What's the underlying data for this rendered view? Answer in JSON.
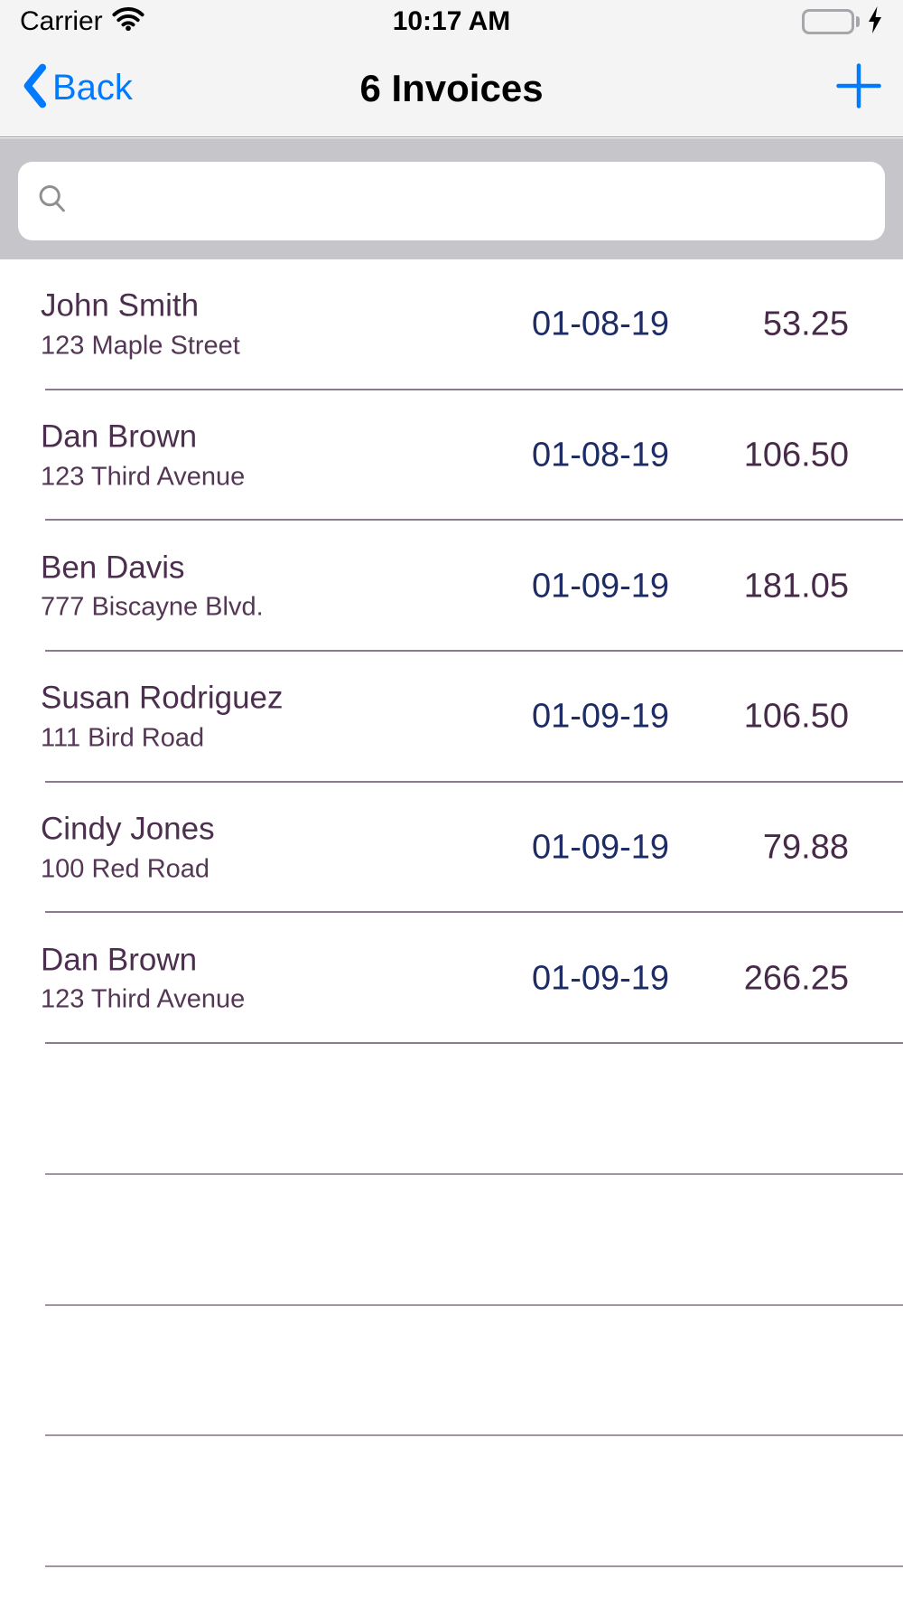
{
  "status_bar": {
    "carrier": "Carrier",
    "time": "10:17 AM"
  },
  "nav_bar": {
    "back_label": "Back",
    "title": "6 Invoices",
    "add_label": "+"
  },
  "search": {
    "value": "",
    "placeholder": ""
  },
  "invoice_list": {
    "rows": [
      {
        "name": "John Smith",
        "address": "123 Maple Street",
        "date": "01-08-19",
        "amount": "53.25"
      },
      {
        "name": "Dan Brown",
        "address": "123 Third Avenue",
        "date": "01-08-19",
        "amount": "106.50"
      },
      {
        "name": "Ben Davis",
        "address": "777 Biscayne Blvd.",
        "date": "01-09-19",
        "amount": "181.05"
      },
      {
        "name": "Susan Rodriguez",
        "address": "111 Bird Road",
        "date": "01-09-19",
        "amount": "106.50"
      },
      {
        "name": "Cindy Jones",
        "address": "100 Red Road",
        "date": "01-09-19",
        "amount": "79.88"
      },
      {
        "name": "Dan Brown",
        "address": "123 Third Avenue",
        "date": "01-09-19",
        "amount": "266.25"
      }
    ],
    "empty_row_count": 4
  },
  "colors": {
    "accent_blue": "#007aff",
    "battery_green": "#4cd964",
    "name_text": "#4c2f4e",
    "date_text": "#1d2c66",
    "separator": "#8c7b8c",
    "search_bar_bg": "#c5c5ca",
    "header_bg": "#f4f4f5"
  }
}
